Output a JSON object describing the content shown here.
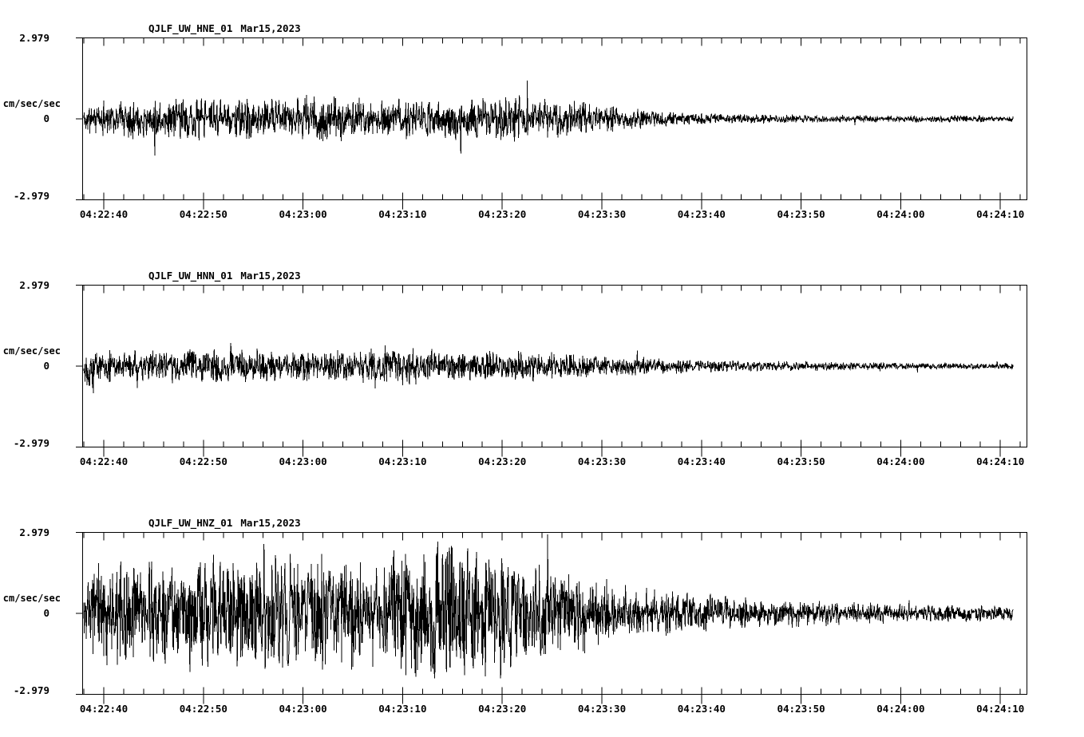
{
  "page": {
    "background": "#ffffff",
    "ink": "#000000",
    "kind": "strong-motion seismogram record, 3 components"
  },
  "chart_data": [
    {
      "type": "line",
      "title": "QJLF_UW_HNE_01",
      "date_label": "Mar15,2023",
      "ylabel": "cm/sec/sec",
      "ylim": [
        -2.979,
        2.979
      ],
      "y_ticks": [
        2.979,
        0,
        -2.979
      ],
      "y_tick_labels": [
        "2.979",
        "0",
        "-2.979"
      ],
      "x_tick_labels": [
        "04:22:40",
        "04:22:50",
        "04:23:00",
        "04:23:10",
        "04:23:20",
        "04:23:30",
        "04:23:40",
        "04:23:50",
        "04:24:00",
        "04:24:10"
      ],
      "x_major_step_s": 10,
      "x_minor_step_s": 2,
      "x_range_s": [
        -2.17,
        92.6
      ],
      "grid": false,
      "legend": "none",
      "trace": {
        "start_s": -2.0,
        "end_s": 91.3,
        "sample_step_s": 0.04,
        "seed": 11,
        "envelope": [
          [
            -2,
            0.4
          ],
          [
            0,
            0.55
          ],
          [
            4,
            0.6
          ],
          [
            10,
            0.65
          ],
          [
            16,
            0.58
          ],
          [
            20,
            0.62
          ],
          [
            22,
            0.8
          ],
          [
            24,
            0.62
          ],
          [
            30,
            0.58
          ],
          [
            36,
            0.65
          ],
          [
            40,
            0.7
          ],
          [
            44,
            0.62
          ],
          [
            47,
            0.55
          ],
          [
            50,
            0.45
          ],
          [
            52,
            0.38
          ],
          [
            54,
            0.3
          ],
          [
            56,
            0.25
          ],
          [
            58,
            0.2
          ],
          [
            62,
            0.16
          ],
          [
            68,
            0.13
          ],
          [
            76,
            0.11
          ],
          [
            84,
            0.1
          ],
          [
            91.3,
            0.09
          ]
        ]
      }
    },
    {
      "type": "line",
      "title": "QJLF_UW_HNN_01",
      "date_label": "Mar15,2023",
      "ylabel": "cm/sec/sec",
      "ylim": [
        -2.979,
        2.979
      ],
      "y_ticks": [
        2.979,
        0,
        -2.979
      ],
      "y_tick_labels": [
        "2.979",
        "0",
        "-2.979"
      ],
      "x_tick_labels": [
        "04:22:40",
        "04:22:50",
        "04:23:00",
        "04:23:10",
        "04:23:20",
        "04:23:30",
        "04:23:40",
        "04:23:50",
        "04:24:00",
        "04:24:10"
      ],
      "x_major_step_s": 10,
      "x_minor_step_s": 2,
      "x_range_s": [
        -2.17,
        92.6
      ],
      "grid": false,
      "legend": "none",
      "trace": {
        "start_s": -2.0,
        "end_s": 91.3,
        "sample_step_s": 0.04,
        "seed": 22,
        "envelope": [
          [
            -2,
            0.45
          ],
          [
            -1,
            0.75
          ],
          [
            0,
            0.5
          ],
          [
            4,
            0.48
          ],
          [
            8,
            0.52
          ],
          [
            12,
            0.48
          ],
          [
            16,
            0.5
          ],
          [
            20,
            0.46
          ],
          [
            24,
            0.5
          ],
          [
            28,
            0.52
          ],
          [
            32,
            0.55
          ],
          [
            36,
            0.5
          ],
          [
            40,
            0.45
          ],
          [
            45,
            0.4
          ],
          [
            50,
            0.33
          ],
          [
            54,
            0.27
          ],
          [
            58,
            0.22
          ],
          [
            62,
            0.18
          ],
          [
            68,
            0.15
          ],
          [
            76,
            0.12
          ],
          [
            84,
            0.1
          ],
          [
            91.3,
            0.09
          ]
        ]
      }
    },
    {
      "type": "line",
      "title": "QJLF_UW_HNZ_01",
      "date_label": "Mar15,2023",
      "ylabel": "cm/sec/sec",
      "ylim": [
        -2.979,
        2.979
      ],
      "y_ticks": [
        2.979,
        0,
        -2.979
      ],
      "y_tick_labels": [
        "2.979",
        "0",
        "-2.979"
      ],
      "x_tick_labels": [
        "04:22:40",
        "04:22:50",
        "04:23:00",
        "04:23:10",
        "04:23:20",
        "04:23:30",
        "04:23:40",
        "04:23:50",
        "04:24:00",
        "04:24:10"
      ],
      "x_major_step_s": 10,
      "x_minor_step_s": 2,
      "x_range_s": [
        -2.17,
        92.6
      ],
      "grid": false,
      "legend": "none",
      "trace": {
        "start_s": -2.0,
        "end_s": 91.3,
        "sample_step_s": 0.04,
        "seed": 33,
        "envelope": [
          [
            -2,
            1.0
          ],
          [
            0,
            1.6
          ],
          [
            3,
            1.8
          ],
          [
            6,
            1.65
          ],
          [
            9,
            1.85
          ],
          [
            12,
            1.7
          ],
          [
            15,
            1.75
          ],
          [
            18,
            1.8
          ],
          [
            21,
            1.65
          ],
          [
            24,
            1.75
          ],
          [
            27,
            1.7
          ],
          [
            30,
            1.85
          ],
          [
            33,
            2.1
          ],
          [
            35,
            2.3
          ],
          [
            37,
            2.1
          ],
          [
            39,
            1.95
          ],
          [
            41,
            1.75
          ],
          [
            43,
            1.55
          ],
          [
            45,
            1.4
          ],
          [
            47,
            1.25
          ],
          [
            49,
            1.1
          ],
          [
            51,
            0.95
          ],
          [
            53,
            0.85
          ],
          [
            55,
            0.75
          ],
          [
            58,
            0.65
          ],
          [
            61,
            0.55
          ],
          [
            64,
            0.5
          ],
          [
            68,
            0.42
          ],
          [
            72,
            0.38
          ],
          [
            76,
            0.33
          ],
          [
            80,
            0.3
          ],
          [
            85,
            0.26
          ],
          [
            91.3,
            0.22
          ]
        ]
      }
    }
  ]
}
